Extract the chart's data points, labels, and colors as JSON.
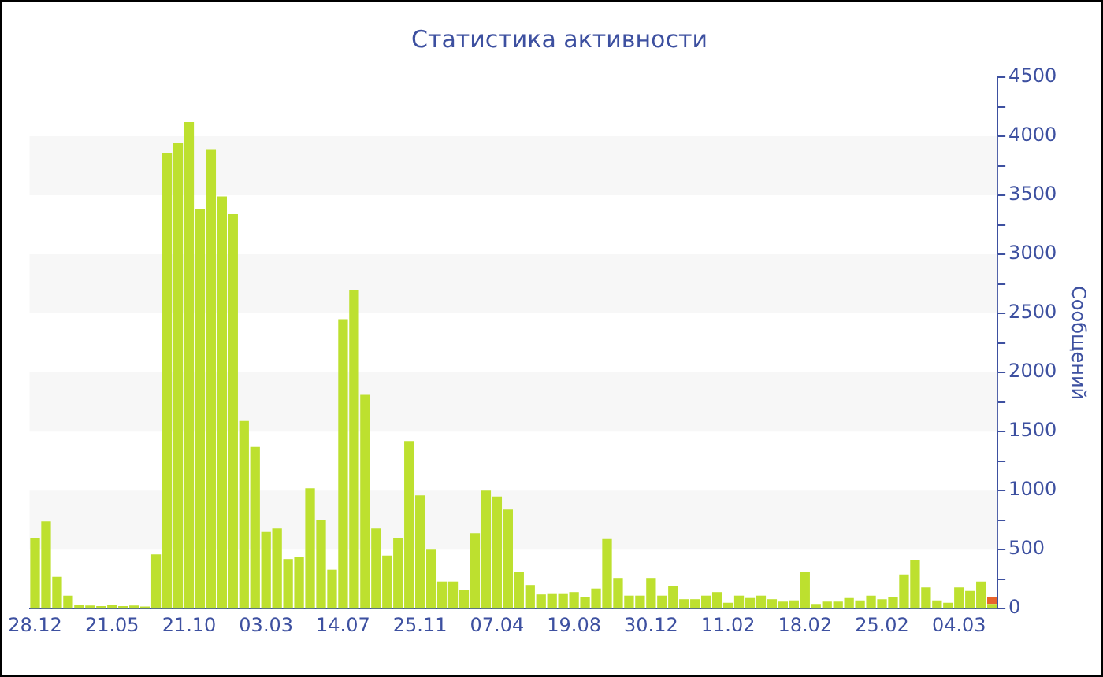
{
  "chart_data": {
    "type": "bar",
    "title": "Статистика активности",
    "ylabel": "Сообщений",
    "categories": [
      "28.12",
      null,
      null,
      null,
      null,
      null,
      null,
      "21.05",
      null,
      null,
      null,
      null,
      null,
      null,
      "21.10",
      null,
      null,
      null,
      null,
      null,
      null,
      "03.03",
      null,
      null,
      null,
      null,
      null,
      null,
      "14.07",
      null,
      null,
      null,
      null,
      null,
      null,
      "25.11",
      null,
      null,
      null,
      null,
      null,
      null,
      "07.04",
      null,
      null,
      null,
      null,
      null,
      null,
      "19.08",
      null,
      null,
      null,
      null,
      null,
      null,
      "30.12",
      null,
      null,
      null,
      null,
      null,
      null,
      "11.02",
      null,
      null,
      null,
      null,
      null,
      null,
      "18.02",
      null,
      null,
      null,
      null,
      null,
      null,
      "25.02",
      null,
      null,
      null,
      null,
      null,
      null,
      "04.03",
      null,
      null,
      null
    ],
    "series": [
      {
        "color": "#bde02f",
        "values": [
          600,
          740,
          270,
          110,
          35,
          26,
          22,
          30,
          22,
          26,
          18,
          460,
          3860,
          3940,
          4120,
          3380,
          3890,
          3490,
          3340,
          1590,
          1370,
          650,
          680,
          420,
          440,
          1020,
          750,
          330,
          2450,
          2700,
          1810,
          680,
          450,
          600,
          1420,
          960,
          500,
          230,
          230,
          160,
          640,
          1000,
          950,
          840,
          310,
          200,
          120,
          130,
          130,
          140,
          100,
          170,
          590,
          260,
          110,
          110,
          260,
          110,
          190,
          80,
          80,
          110,
          140,
          50,
          110,
          90,
          110,
          80,
          60,
          70,
          310,
          40,
          60,
          60,
          90,
          70,
          110,
          80,
          100,
          290,
          410,
          180,
          70,
          50,
          180,
          150,
          230,
          40
        ]
      },
      {
        "color": "#e8642c",
        "values": [
          null,
          null,
          null,
          null,
          null,
          null,
          null,
          null,
          null,
          null,
          null,
          null,
          null,
          null,
          null,
          null,
          null,
          null,
          null,
          null,
          null,
          null,
          null,
          null,
          null,
          null,
          null,
          null,
          null,
          null,
          null,
          null,
          null,
          null,
          null,
          null,
          null,
          null,
          null,
          null,
          null,
          null,
          null,
          null,
          null,
          null,
          null,
          null,
          null,
          null,
          null,
          null,
          null,
          null,
          null,
          null,
          null,
          null,
          null,
          null,
          null,
          null,
          null,
          null,
          null,
          null,
          null,
          null,
          null,
          null,
          null,
          null,
          null,
          null,
          null,
          null,
          null,
          null,
          null,
          null,
          null,
          null,
          null,
          null,
          null,
          null,
          null,
          60
        ]
      }
    ],
    "stacked": true,
    "ylim": [
      0,
      4500
    ],
    "yticks": [
      0,
      {
        "value": 250,
        "label": null
      },
      500,
      {
        "value": 750,
        "label": null
      },
      1000,
      {
        "value": 1250,
        "label": null
      },
      1500,
      {
        "value": 1750,
        "label": null
      },
      2000,
      {
        "value": 2250,
        "label": null
      },
      2500,
      {
        "value": 2750,
        "label": null
      },
      3000,
      {
        "value": 3250,
        "label": null
      },
      3500,
      {
        "value": 3750,
        "label": null
      },
      4000,
      {
        "value": 4250,
        "label": null
      },
      4500
    ],
    "bands": [
      {
        "axis": "y",
        "from": 500,
        "to": 1000,
        "color": "#f7f7f7"
      },
      {
        "axis": "y",
        "from": 1500,
        "to": 2000,
        "color": "#f7f7f7"
      },
      {
        "axis": "y",
        "from": 2500,
        "to": 3000,
        "color": "#f7f7f7"
      },
      {
        "axis": "y",
        "from": 3500,
        "to": 4000,
        "color": "#f7f7f7"
      }
    ]
  }
}
